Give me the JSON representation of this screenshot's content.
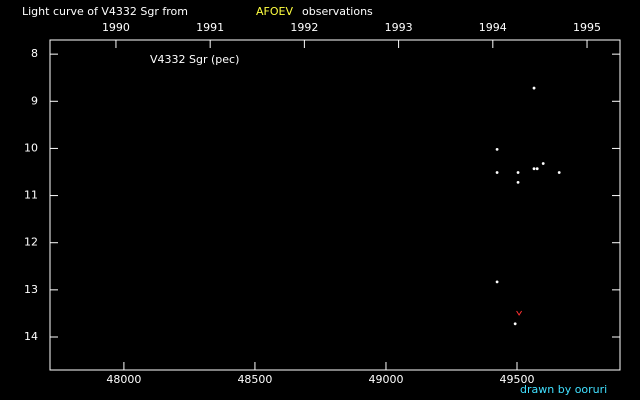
{
  "chart_data": {
    "type": "scatter",
    "title": "Light curve of V4332 Sgr from",
    "title_source": "AFOEV",
    "title_end": "observations",
    "annotation": "V4332 Sgr (pec)",
    "credit": "drawn by ooruri",
    "xlim": [
      47718,
      49893
    ],
    "xticks": [
      48000,
      48500,
      49000,
      49500
    ],
    "x2lim": [
      1989.3,
      1995.35
    ],
    "x2ticks": [
      1990,
      1991,
      1992,
      1993,
      1994,
      1995
    ],
    "ylim": [
      14.7,
      7.7
    ],
    "yticks": [
      8,
      9,
      10,
      11,
      12,
      13,
      14
    ],
    "series": [
      {
        "color": "#ffffff",
        "marker": "dot",
        "x": [
          49424,
          49424,
          49424,
          49504,
          49504,
          49565,
          49565,
          49577,
          49600,
          49661,
          49493
        ],
        "values": [
          10.02,
          10.51,
          12.83,
          10.51,
          10.72,
          8.72,
          10.43,
          10.43,
          10.32,
          10.51,
          13.72
        ]
      },
      {
        "color": "#ff3030",
        "marker": "v",
        "x": [
          49508
        ],
        "values": [
          13.49
        ]
      }
    ]
  }
}
